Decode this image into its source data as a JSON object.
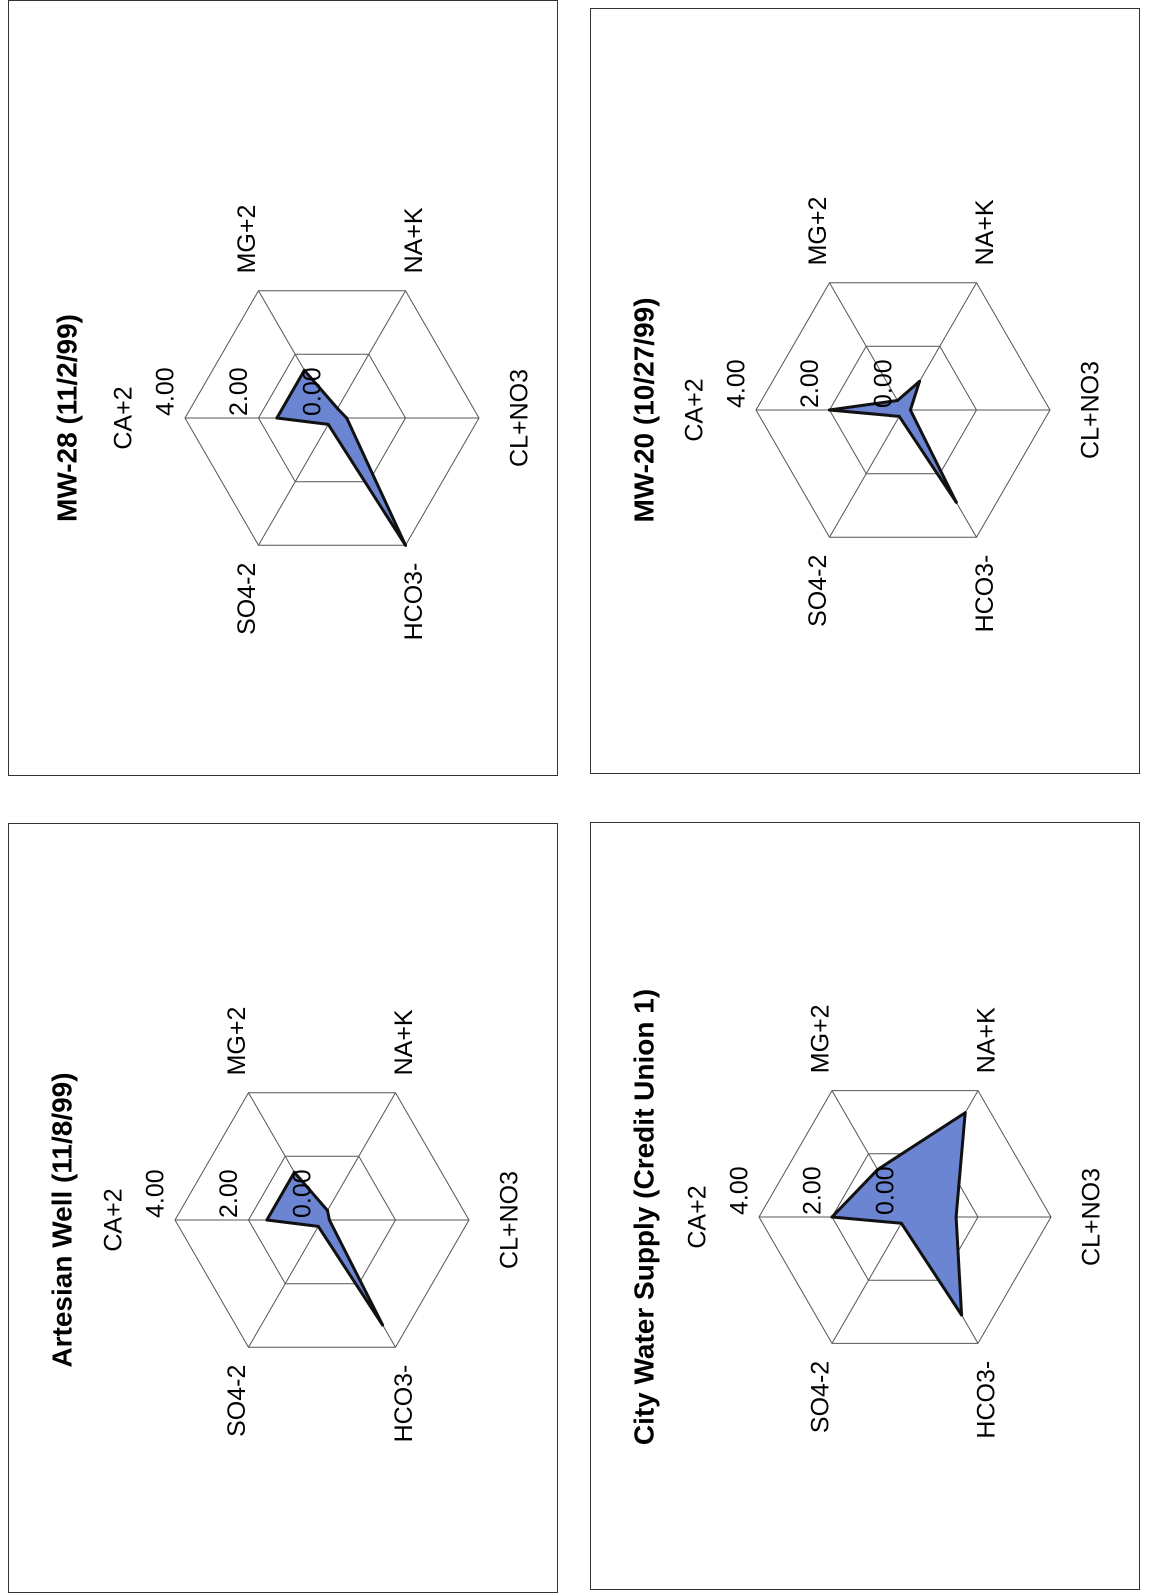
{
  "chart_data": [
    {
      "type": "radar",
      "title": "Artesian Well (11/8/99)",
      "axes": [
        "CA+2",
        "MG+2",
        "NA+K",
        "CL+NO3",
        "HCO3-",
        "SO4-2"
      ],
      "tick_labels": [
        "4.00",
        "2.00",
        "0.00"
      ],
      "rlim": [
        0,
        4
      ],
      "values": [
        1.5,
        1.5,
        0.3,
        0.2,
        3.3,
        0.2
      ]
    },
    {
      "type": "radar",
      "title": "MW-28 (11/2/99)",
      "axes": [
        "CA+2",
        "MG+2",
        "NA+K",
        "CL+NO3",
        "HCO3-",
        "SO4-2"
      ],
      "tick_labels": [
        "4.00",
        "2.00",
        "0.00"
      ],
      "rlim": [
        0,
        4
      ],
      "values": [
        1.5,
        1.5,
        0.3,
        0.4,
        4.0,
        0.2
      ]
    },
    {
      "type": "radar",
      "title": "City Water Supply (Credit Union 1)",
      "axes": [
        "CA+2",
        "MG+2",
        "NA+K",
        "CL+NO3",
        "HCO3-",
        "SO4-2"
      ],
      "tick_labels": [
        "4.00",
        "2.00",
        "0.00"
      ],
      "rlim": [
        0,
        4
      ],
      "values": [
        2.0,
        1.5,
        3.3,
        1.4,
        3.1,
        0.2
      ]
    },
    {
      "type": "radar",
      "title": "MW-20 (10/27/99)",
      "axes": [
        "CA+2",
        "MG+2",
        "NA+K",
        "CL+NO3",
        "HCO3-",
        "SO4-2"
      ],
      "tick_labels": [
        "4.00",
        "2.00",
        "0.00"
      ],
      "rlim": [
        0,
        4
      ],
      "values": [
        2.0,
        0.3,
        0.9,
        0.2,
        2.9,
        0.2
      ]
    }
  ]
}
